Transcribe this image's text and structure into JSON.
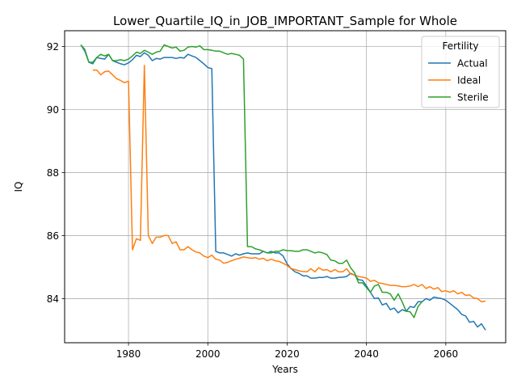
{
  "chart_data": {
    "type": "line",
    "title": "Lower_Quartile_IQ_in_JOB_IMPORTANT_Sample for Whole",
    "xlabel": "Years",
    "ylabel": "IQ",
    "xlim": [
      1963.9,
      2075.1
    ],
    "ylim": [
      82.6,
      92.5
    ],
    "xticks": [
      1980,
      2000,
      2020,
      2040,
      2060
    ],
    "yticks": [
      84,
      86,
      88,
      90,
      92
    ],
    "grid": true,
    "legend": {
      "title": "Fertility",
      "placement": "top-right"
    },
    "series": [
      {
        "name": "Actual",
        "color": "#1f77b4",
        "x": [
          1968,
          1969,
          1970,
          1971,
          1972,
          1973,
          1974,
          1975,
          1976,
          1977,
          1978,
          1979,
          1980,
          1981,
          1982,
          1983,
          1984,
          1985,
          1986,
          1987,
          1988,
          1989,
          1990,
          1991,
          1992,
          1993,
          1994,
          1995,
          1996,
          1997,
          1998,
          1999,
          2000,
          2001,
          2002,
          2003,
          2004,
          2005,
          2006,
          2007,
          2008,
          2009,
          2010,
          2011,
          2012,
          2013,
          2014,
          2015,
          2016,
          2017,
          2018,
          2019,
          2020,
          2021,
          2022,
          2023,
          2024,
          2025,
          2026,
          2027,
          2028,
          2029,
          2030,
          2031,
          2032,
          2033,
          2034,
          2035,
          2036,
          2037,
          2038,
          2039,
          2040,
          2041,
          2042,
          2043,
          2044,
          2045,
          2046,
          2047,
          2048,
          2049,
          2050,
          2051,
          2052,
          2053,
          2054,
          2055,
          2056,
          2057,
          2058,
          2059,
          2060,
          2061,
          2062,
          2063,
          2064,
          2065,
          2066,
          2067,
          2068,
          2069,
          2070
        ],
        "y": [
          92.05,
          91.9,
          91.5,
          91.45,
          91.65,
          91.62,
          91.6,
          91.75,
          91.55,
          91.5,
          91.45,
          91.42,
          91.48,
          91.58,
          91.72,
          91.68,
          91.8,
          91.72,
          91.55,
          91.62,
          91.6,
          91.65,
          91.65,
          91.65,
          91.62,
          91.65,
          91.63,
          91.75,
          91.7,
          91.65,
          91.55,
          91.45,
          91.33,
          91.3,
          85.5,
          85.45,
          85.45,
          85.4,
          85.35,
          85.42,
          85.38,
          85.42,
          85.45,
          85.42,
          85.42,
          85.42,
          85.5,
          85.45,
          85.5,
          85.45,
          85.45,
          85.35,
          85.1,
          84.95,
          84.85,
          84.8,
          84.72,
          84.72,
          84.65,
          84.65,
          84.67,
          84.67,
          84.7,
          84.65,
          84.65,
          84.67,
          84.68,
          84.7,
          84.8,
          84.75,
          84.6,
          84.58,
          84.4,
          84.2,
          84.0,
          84.02,
          83.8,
          83.85,
          83.65,
          83.7,
          83.55,
          83.65,
          83.6,
          83.75,
          83.72,
          83.9,
          83.9,
          84.0,
          83.95,
          84.05,
          84.02,
          84.0,
          83.95,
          83.85,
          83.75,
          83.65,
          83.5,
          83.45,
          83.25,
          83.28,
          83.1,
          83.2,
          83.0
        ]
      },
      {
        "name": "Ideal",
        "color": "#ff7f0e",
        "x": [
          1971,
          1972,
          1973,
          1974,
          1975,
          1976,
          1977,
          1978,
          1979,
          1980,
          1981,
          1982,
          1983,
          1984,
          1985,
          1986,
          1987,
          1988,
          1989,
          1990,
          1991,
          1992,
          1993,
          1994,
          1995,
          1996,
          1997,
          1998,
          1999,
          2000,
          2001,
          2002,
          2003,
          2004,
          2005,
          2006,
          2007,
          2008,
          2009,
          2010,
          2011,
          2012,
          2013,
          2014,
          2015,
          2016,
          2017,
          2018,
          2019,
          2020,
          2021,
          2022,
          2023,
          2024,
          2025,
          2026,
          2027,
          2028,
          2029,
          2030,
          2031,
          2032,
          2033,
          2034,
          2035,
          2036,
          2037,
          2038,
          2039,
          2040,
          2041,
          2042,
          2043,
          2044,
          2045,
          2046,
          2047,
          2048,
          2049,
          2050,
          2051,
          2052,
          2053,
          2054,
          2055,
          2056,
          2057,
          2058,
          2059,
          2060,
          2061,
          2062,
          2063,
          2064,
          2065,
          2066,
          2067,
          2068,
          2069,
          2070
        ],
        "y": [
          91.25,
          91.25,
          91.1,
          91.2,
          91.22,
          91.1,
          90.98,
          90.92,
          90.85,
          90.9,
          85.55,
          85.9,
          85.85,
          91.4,
          86.0,
          85.75,
          85.95,
          85.95,
          86.0,
          86.0,
          85.75,
          85.8,
          85.55,
          85.55,
          85.65,
          85.55,
          85.48,
          85.45,
          85.35,
          85.3,
          85.38,
          85.25,
          85.22,
          85.12,
          85.15,
          85.2,
          85.25,
          85.28,
          85.32,
          85.3,
          85.28,
          85.3,
          85.25,
          85.28,
          85.2,
          85.25,
          85.2,
          85.18,
          85.12,
          85.05,
          84.95,
          84.92,
          84.88,
          84.86,
          84.85,
          84.95,
          84.85,
          84.98,
          84.9,
          84.92,
          84.85,
          84.92,
          84.85,
          84.85,
          84.95,
          84.78,
          84.75,
          84.7,
          84.68,
          84.65,
          84.55,
          84.58,
          84.5,
          84.48,
          84.45,
          84.42,
          84.42,
          84.4,
          84.38,
          84.38,
          84.4,
          84.45,
          84.38,
          84.45,
          84.32,
          84.38,
          84.3,
          84.35,
          84.22,
          84.25,
          84.2,
          84.25,
          84.15,
          84.2,
          84.1,
          84.12,
          84.02,
          84.0,
          83.9,
          83.92
        ]
      },
      {
        "name": "Sterile",
        "color": "#2ca02c",
        "x": [
          1968,
          1969,
          1970,
          1971,
          1972,
          1973,
          1974,
          1975,
          1976,
          1977,
          1978,
          1979,
          1980,
          1981,
          1982,
          1983,
          1984,
          1985,
          1986,
          1987,
          1988,
          1989,
          1990,
          1991,
          1992,
          1993,
          1994,
          1995,
          1996,
          1997,
          1998,
          1999,
          2000,
          2001,
          2002,
          2003,
          2004,
          2005,
          2006,
          2007,
          2008,
          2009,
          2010,
          2011,
          2012,
          2013,
          2014,
          2015,
          2016,
          2017,
          2018,
          2019,
          2020,
          2021,
          2022,
          2023,
          2024,
          2025,
          2026,
          2027,
          2028,
          2029,
          2030,
          2031,
          2032,
          2033,
          2034,
          2035,
          2036,
          2037,
          2038,
          2039,
          2040,
          2041,
          2042,
          2043,
          2044,
          2045,
          2046,
          2047,
          2048,
          2049,
          2050,
          2051,
          2052,
          2053,
          2054
        ],
        "y": [
          92.05,
          91.85,
          91.5,
          91.5,
          91.65,
          91.75,
          91.7,
          91.75,
          91.55,
          91.55,
          91.58,
          91.55,
          91.6,
          91.7,
          91.82,
          91.78,
          91.88,
          91.82,
          91.75,
          91.82,
          91.85,
          92.05,
          92.0,
          91.95,
          91.98,
          91.85,
          91.88,
          91.98,
          92.0,
          91.98,
          92.02,
          91.9,
          91.9,
          91.88,
          91.85,
          91.85,
          91.8,
          91.75,
          91.78,
          91.75,
          91.72,
          91.6,
          85.65,
          85.65,
          85.58,
          85.55,
          85.5,
          85.45,
          85.45,
          85.5,
          85.5,
          85.55,
          85.52,
          85.52,
          85.5,
          85.5,
          85.55,
          85.55,
          85.5,
          85.45,
          85.48,
          85.45,
          85.4,
          85.22,
          85.2,
          85.12,
          85.12,
          85.22,
          84.98,
          84.82,
          84.5,
          84.5,
          84.35,
          84.2,
          84.4,
          84.45,
          84.2,
          84.2,
          84.15,
          83.95,
          84.15,
          83.9,
          83.6,
          83.58,
          83.4,
          83.75,
          83.9
        ]
      }
    ]
  }
}
